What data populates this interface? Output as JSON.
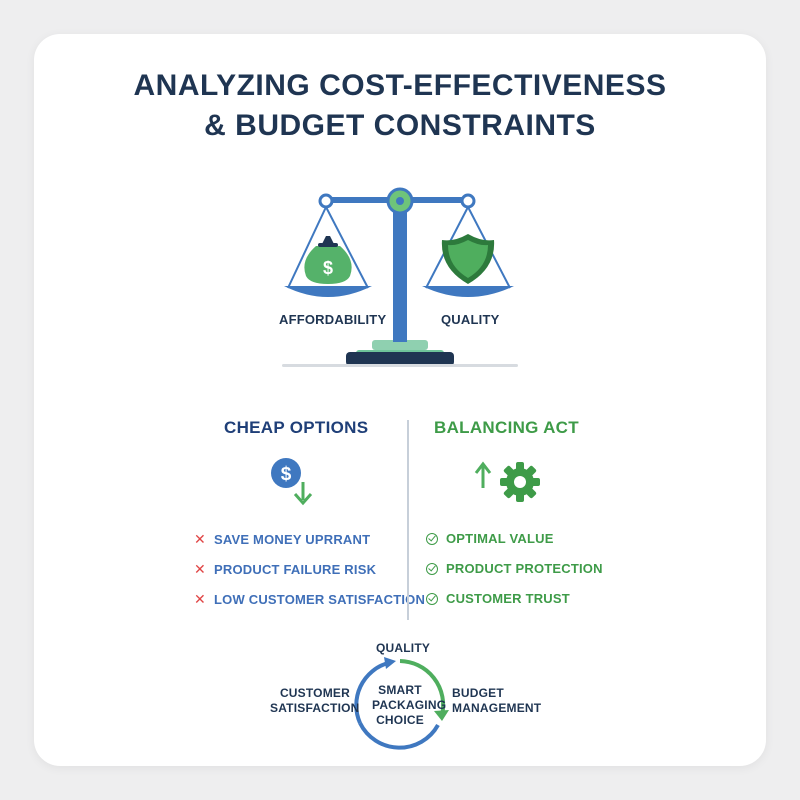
{
  "title": {
    "line1": "ANALYZING COST-EFFECTIVENESS",
    "line2": "& BUDGET CONSTRAINTS"
  },
  "scale": {
    "left_label": "AFFORDABILITY",
    "right_label": "QUALITY",
    "left_icon": "money-bag-icon",
    "right_icon": "shield-icon"
  },
  "cheap": {
    "heading": "CHEAP OPTIONS",
    "icon": "dollar-down-icon",
    "items": [
      "SAVE MONEY UPRRANT",
      "PRODUCT FAILURE RISK",
      "LOW CUSTOMER SATISFACTION"
    ]
  },
  "balance": {
    "heading": "BALANCING ACT",
    "icon": "gear-up-icon",
    "items": [
      "OPTIMAL VALUE",
      "PRODUCT PROTECTION",
      "CUSTOMER TRUST"
    ]
  },
  "cycle": {
    "center_line1": "SMART",
    "center_line2": "PACKAGING",
    "center_line3": "CHOICE",
    "top": "QUALITY",
    "left_line1": "CUSTOMER",
    "left_line2": "SATISFACTION",
    "right_line1": "BUDGET",
    "right_line2": "MANAGEMENT"
  },
  "colors": {
    "navy": "#1f3552",
    "blue": "#3f78c0",
    "green": "#3e9b48",
    "red": "#e04545"
  }
}
